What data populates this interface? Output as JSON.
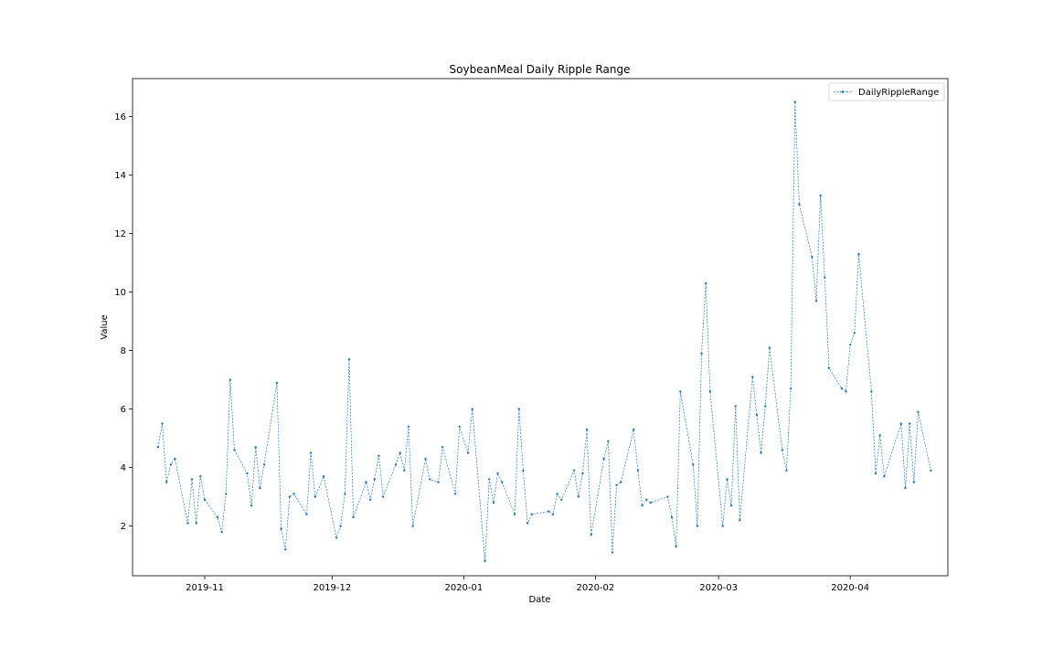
{
  "chart_data": {
    "type": "line",
    "title": "SoybeanMeal Daily Ripple Range",
    "xlabel": "Date",
    "ylabel": "Value",
    "xlim": [
      "2019-10-15",
      "2020-04-24"
    ],
    "ylim": [
      0.3,
      17.3
    ],
    "x_ticks": [
      {
        "date": "2019-11-01",
        "label": "2019-11"
      },
      {
        "date": "2019-12-01",
        "label": "2019-12"
      },
      {
        "date": "2020-01-01",
        "label": "2020-01"
      },
      {
        "date": "2020-02-01",
        "label": "2020-02"
      },
      {
        "date": "2020-03-01",
        "label": "2020-03"
      },
      {
        "date": "2020-04-01",
        "label": "2020-04"
      }
    ],
    "y_ticks": [
      2,
      4,
      6,
      8,
      10,
      12,
      14,
      16
    ],
    "grid": false,
    "legend_position": "top-right",
    "series_color": "#1f77b4",
    "series": [
      {
        "name": "DailyRippleRange",
        "points": [
          [
            "2019-10-21",
            4.7
          ],
          [
            "2019-10-22",
            5.5
          ],
          [
            "2019-10-23",
            3.5
          ],
          [
            "2019-10-24",
            4.1
          ],
          [
            "2019-10-25",
            4.3
          ],
          [
            "2019-10-28",
            2.1
          ],
          [
            "2019-10-29",
            3.6
          ],
          [
            "2019-10-30",
            2.1
          ],
          [
            "2019-10-31",
            3.7
          ],
          [
            "2019-11-01",
            2.9
          ],
          [
            "2019-11-04",
            2.3
          ],
          [
            "2019-11-05",
            1.8
          ],
          [
            "2019-11-06",
            3.1
          ],
          [
            "2019-11-07",
            7.0
          ],
          [
            "2019-11-08",
            4.6
          ],
          [
            "2019-11-11",
            3.8
          ],
          [
            "2019-11-12",
            2.7
          ],
          [
            "2019-11-13",
            4.7
          ],
          [
            "2019-11-14",
            3.3
          ],
          [
            "2019-11-15",
            4.1
          ],
          [
            "2019-11-18",
            6.9
          ],
          [
            "2019-11-19",
            1.9
          ],
          [
            "2019-11-20",
            1.2
          ],
          [
            "2019-11-21",
            3.0
          ],
          [
            "2019-11-22",
            3.1
          ],
          [
            "2019-11-25",
            2.4
          ],
          [
            "2019-11-26",
            4.5
          ],
          [
            "2019-11-27",
            3.0
          ],
          [
            "2019-11-29",
            3.7
          ],
          [
            "2019-12-02",
            1.6
          ],
          [
            "2019-12-03",
            2.0
          ],
          [
            "2019-12-04",
            3.1
          ],
          [
            "2019-12-05",
            7.7
          ],
          [
            "2019-12-06",
            2.3
          ],
          [
            "2019-12-09",
            3.5
          ],
          [
            "2019-12-10",
            2.9
          ],
          [
            "2019-12-11",
            3.6
          ],
          [
            "2019-12-12",
            4.4
          ],
          [
            "2019-12-13",
            3.0
          ],
          [
            "2019-12-16",
            4.1
          ],
          [
            "2019-12-17",
            4.5
          ],
          [
            "2019-12-18",
            3.9
          ],
          [
            "2019-12-19",
            5.4
          ],
          [
            "2019-12-20",
            2.0
          ],
          [
            "2019-12-23",
            4.3
          ],
          [
            "2019-12-24",
            3.6
          ],
          [
            "2019-12-26",
            3.5
          ],
          [
            "2019-12-27",
            4.7
          ],
          [
            "2019-12-30",
            3.1
          ],
          [
            "2019-12-31",
            5.4
          ],
          [
            "2020-01-02",
            4.5
          ],
          [
            "2020-01-03",
            6.0
          ],
          [
            "2020-01-06",
            0.8
          ],
          [
            "2020-01-07",
            3.6
          ],
          [
            "2020-01-08",
            2.8
          ],
          [
            "2020-01-09",
            3.8
          ],
          [
            "2020-01-10",
            3.5
          ],
          [
            "2020-01-13",
            2.4
          ],
          [
            "2020-01-14",
            6.0
          ],
          [
            "2020-01-15",
            3.9
          ],
          [
            "2020-01-16",
            2.1
          ],
          [
            "2020-01-17",
            2.4
          ],
          [
            "2020-01-21",
            2.5
          ],
          [
            "2020-01-22",
            2.4
          ],
          [
            "2020-01-23",
            3.1
          ],
          [
            "2020-01-24",
            2.9
          ],
          [
            "2020-01-27",
            3.9
          ],
          [
            "2020-01-28",
            3.0
          ],
          [
            "2020-01-29",
            3.8
          ],
          [
            "2020-01-30",
            5.3
          ],
          [
            "2020-01-31",
            1.7
          ],
          [
            "2020-02-03",
            4.3
          ],
          [
            "2020-02-04",
            4.9
          ],
          [
            "2020-02-05",
            1.1
          ],
          [
            "2020-02-06",
            3.4
          ],
          [
            "2020-02-07",
            3.5
          ],
          [
            "2020-02-10",
            5.3
          ],
          [
            "2020-02-11",
            3.9
          ],
          [
            "2020-02-12",
            2.7
          ],
          [
            "2020-02-13",
            2.9
          ],
          [
            "2020-02-14",
            2.8
          ],
          [
            "2020-02-18",
            3.0
          ],
          [
            "2020-02-19",
            2.3
          ],
          [
            "2020-02-20",
            1.3
          ],
          [
            "2020-02-21",
            6.6
          ],
          [
            "2020-02-24",
            4.1
          ],
          [
            "2020-02-25",
            2.0
          ],
          [
            "2020-02-26",
            7.9
          ],
          [
            "2020-02-27",
            10.3
          ],
          [
            "2020-02-28",
            6.6
          ],
          [
            "2020-03-02",
            2.0
          ],
          [
            "2020-03-03",
            3.6
          ],
          [
            "2020-03-04",
            2.7
          ],
          [
            "2020-03-05",
            6.1
          ],
          [
            "2020-03-06",
            2.2
          ],
          [
            "2020-03-09",
            7.1
          ],
          [
            "2020-03-10",
            5.8
          ],
          [
            "2020-03-11",
            4.5
          ],
          [
            "2020-03-12",
            6.1
          ],
          [
            "2020-03-13",
            8.1
          ],
          [
            "2020-03-16",
            4.6
          ],
          [
            "2020-03-17",
            3.9
          ],
          [
            "2020-03-18",
            6.7
          ],
          [
            "2020-03-19",
            16.5
          ],
          [
            "2020-03-20",
            13.0
          ],
          [
            "2020-03-23",
            11.2
          ],
          [
            "2020-03-24",
            9.7
          ],
          [
            "2020-03-25",
            13.3
          ],
          [
            "2020-03-26",
            10.5
          ],
          [
            "2020-03-27",
            7.4
          ],
          [
            "2020-03-30",
            6.7
          ],
          [
            "2020-03-31",
            6.6
          ],
          [
            "2020-04-01",
            8.2
          ],
          [
            "2020-04-02",
            8.6
          ],
          [
            "2020-04-03",
            11.3
          ],
          [
            "2020-04-06",
            6.6
          ],
          [
            "2020-04-07",
            3.8
          ],
          [
            "2020-04-08",
            5.1
          ],
          [
            "2020-04-09",
            3.7
          ],
          [
            "2020-04-13",
            5.5
          ],
          [
            "2020-04-14",
            3.3
          ],
          [
            "2020-04-15",
            5.5
          ],
          [
            "2020-04-16",
            3.5
          ],
          [
            "2020-04-17",
            5.9
          ],
          [
            "2020-04-20",
            3.9
          ]
        ]
      }
    ]
  }
}
